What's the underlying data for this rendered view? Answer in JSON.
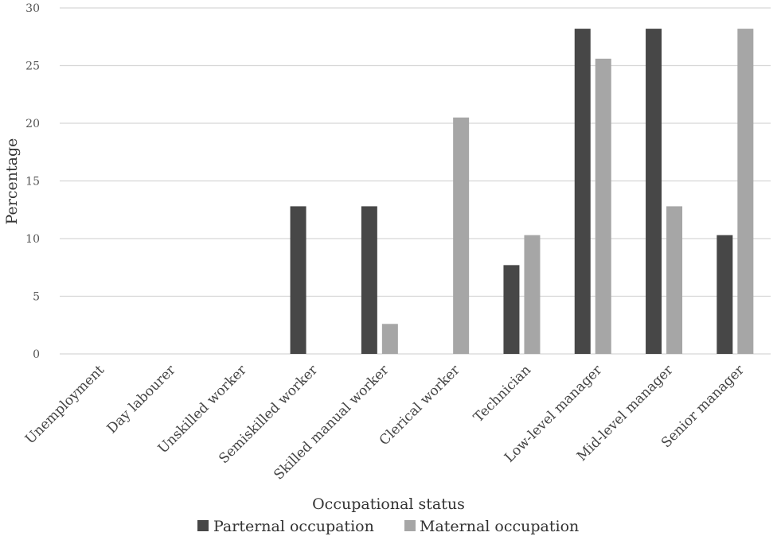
{
  "chart_data": {
    "type": "bar",
    "title": "",
    "xlabel": "Occupational status",
    "ylabel": "Percentage",
    "ylim": [
      0,
      30
    ],
    "yticks": [
      0,
      5,
      10,
      15,
      20,
      25,
      30
    ],
    "grid": true,
    "legend_position": "bottom",
    "categories": [
      "Unemployment",
      "Day labourer",
      "Unskilled worker",
      "Semiskilled worker",
      "Skilled manual worker",
      "Clerical worker",
      "Technician",
      "Low-level manager",
      "Mid-level manager",
      "Senior manager"
    ],
    "series": [
      {
        "name": "Parternal occupation",
        "color": "#474747",
        "values": [
          0,
          0,
          0,
          12.8,
          12.8,
          0,
          7.7,
          28.2,
          28.2,
          10.3
        ]
      },
      {
        "name": "Maternal occupation",
        "color": "#a6a6a6",
        "values": [
          0,
          0,
          0,
          0,
          2.6,
          20.5,
          10.3,
          25.6,
          12.8,
          28.2
        ]
      }
    ]
  }
}
